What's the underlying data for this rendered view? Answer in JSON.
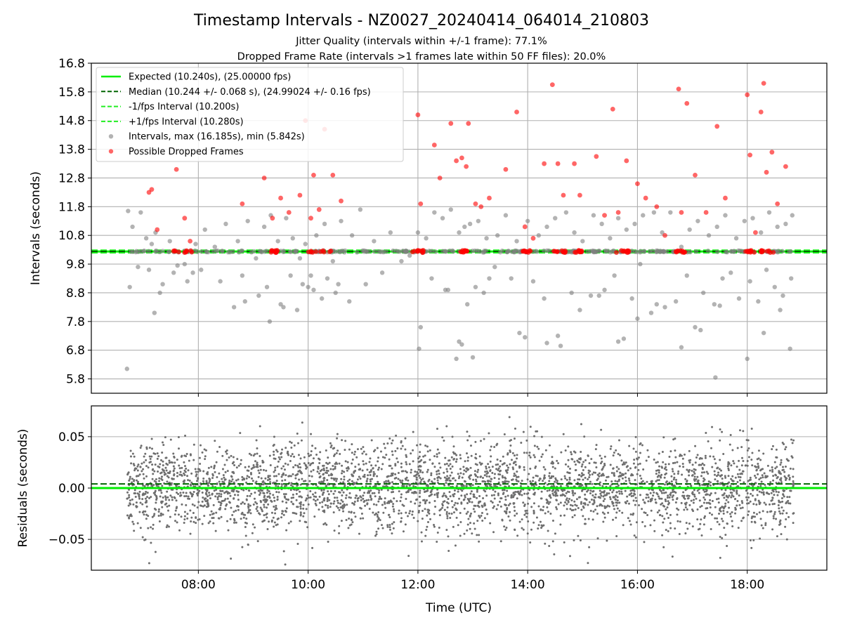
{
  "title": "Timestamp Intervals - NZ0027_20240414_064014_210803",
  "subtitle_lines": [
    "Jitter Quality (intervals within +/-1 frame): 77.1%",
    "Dropped Frame Rate (intervals >1 frames late within 50 FF files): 20.0%"
  ],
  "colors": {
    "expected": "#00ee00",
    "median": "#006400",
    "interval_line": "#22ee22",
    "intervals": "#808080",
    "dropped": "#ff0000",
    "residuals": "#6e6e6e",
    "grid": "#b0b0b0"
  },
  "chart_data": [
    {
      "type": "scatter",
      "ylabel": "Intervals (seconds)",
      "xlim": [
        6.05,
        19.45
      ],
      "ylim": [
        5.3,
        16.8
      ],
      "yticks": [
        5.8,
        6.8,
        7.8,
        8.8,
        9.8,
        10.8,
        11.8,
        12.8,
        13.8,
        14.8,
        15.8,
        16.8
      ],
      "xticks": [
        8,
        10,
        12,
        14,
        16,
        18
      ],
      "grid": true,
      "legend_position": "top-left",
      "legend": [
        "Expected (10.240s), (25.00000 fps)",
        "Median (10.244 +/- 0.068 s), (24.99024 +/- 0.16 fps)",
        "-1/fps Interval (10.200s)",
        "+1/fps Interval (10.280s)",
        "Intervals, max (16.185s), min (5.842s)",
        "Possible Dropped Frames"
      ],
      "lines": {
        "expected": 10.24,
        "median": 10.244,
        "minus_1fps": 10.2,
        "plus_1fps": 10.28
      },
      "series": [
        {
          "name": "Intervals, max (16.185s), min (5.842s)",
          "x": [
            6.72,
            6.8,
            6.95,
            7.05,
            7.15,
            7.22,
            7.35,
            7.48,
            7.62,
            7.8,
            7.95,
            8.12,
            8.3,
            8.5,
            8.72,
            8.9,
            9.05,
            9.2,
            9.32,
            9.45,
            9.6,
            9.72,
            9.85,
            9.95,
            10.05,
            10.15,
            10.3,
            10.45,
            10.6,
            10.8,
            10.95,
            11.2,
            11.5,
            11.85,
            12.0,
            12.15,
            12.3,
            12.45,
            12.6,
            12.75,
            12.85,
            12.95,
            13.1,
            13.25,
            13.45,
            13.6,
            13.8,
            14.0,
            14.2,
            14.35,
            14.5,
            14.7,
            14.85,
            15.0,
            15.2,
            15.35,
            15.5,
            15.65,
            15.8,
            15.95,
            16.1,
            16.3,
            16.45,
            16.6,
            16.8,
            16.95,
            17.1,
            17.3,
            17.45,
            17.6,
            17.8,
            17.95,
            18.1,
            18.25,
            18.4,
            18.55,
            18.7,
            18.82,
            6.75,
            6.9,
            7.1,
            7.3,
            7.55,
            7.75,
            8.05,
            8.4,
            8.65,
            8.85,
            9.1,
            9.25,
            9.5,
            9.68,
            9.9,
            10.1,
            10.35,
            10.5,
            10.75,
            11.05,
            11.35,
            11.7,
            12.05,
            12.25,
            12.5,
            12.7,
            12.8,
            12.9,
            13.05,
            13.2,
            13.4,
            13.7,
            13.85,
            14.1,
            14.3,
            14.55,
            14.8,
            14.95,
            15.15,
            15.4,
            15.58,
            15.75,
            15.9,
            16.05,
            16.25,
            16.5,
            16.7,
            16.9,
            17.05,
            17.2,
            17.4,
            17.55,
            17.7,
            17.85,
            18.05,
            18.2,
            18.35,
            18.5,
            18.65,
            18.8,
            6.7,
            7.2,
            7.9,
            8.8,
            9.3,
            9.55,
            9.8,
            10.0,
            10.25,
            10.55,
            12.02,
            12.55,
            12.75,
            13.0,
            13.3,
            13.95,
            14.35,
            14.6,
            15.3,
            15.65,
            16.0,
            16.35,
            16.8,
            17.15,
            17.42,
            17.5,
            18.0,
            18.3,
            18.6,
            18.78
          ],
          "y": [
            11.65,
            11.1,
            11.6,
            10.7,
            10.5,
            10.9,
            9.1,
            10.6,
            9.75,
            9.2,
            10.5,
            11.0,
            10.4,
            11.2,
            10.6,
            11.3,
            10.0,
            11.1,
            11.5,
            10.6,
            11.4,
            10.7,
            10.0,
            10.5,
            9.4,
            10.8,
            11.2,
            9.9,
            11.3,
            10.8,
            11.7,
            10.6,
            10.9,
            10.1,
            10.9,
            10.7,
            11.6,
            11.4,
            11.7,
            10.9,
            11.1,
            11.2,
            11.3,
            10.7,
            10.8,
            11.5,
            10.6,
            11.3,
            10.8,
            11.1,
            11.4,
            11.6,
            10.9,
            10.6,
            11.5,
            11.2,
            10.7,
            11.4,
            11.0,
            11.2,
            11.5,
            11.6,
            10.9,
            11.6,
            10.4,
            11.0,
            11.3,
            10.8,
            11.1,
            11.5,
            10.7,
            11.3,
            11.4,
            10.9,
            11.6,
            11.1,
            11.2,
            11.5,
            9.0,
            9.7,
            9.6,
            8.8,
            9.5,
            9.8,
            9.6,
            9.2,
            8.3,
            8.5,
            8.7,
            9.0,
            8.4,
            9.4,
            9.1,
            8.9,
            9.3,
            8.8,
            8.5,
            9.1,
            9.5,
            9.9,
            7.6,
            9.3,
            8.9,
            6.5,
            7.0,
            8.4,
            9.0,
            8.8,
            9.7,
            9.3,
            7.4,
            9.2,
            8.6,
            7.3,
            8.8,
            8.2,
            8.7,
            8.9,
            9.4,
            7.2,
            8.6,
            9.8,
            8.1,
            8.3,
            8.5,
            9.4,
            7.6,
            8.8,
            8.4,
            9.3,
            9.5,
            8.6,
            9.2,
            8.5,
            9.6,
            9.0,
            8.7,
            9.3,
            6.15,
            8.1,
            9.5,
            9.4,
            7.8,
            8.3,
            8.2,
            9.0,
            8.6,
            9.1,
            6.85,
            8.9,
            7.1,
            6.55,
            9.3,
            7.25,
            7.05,
            6.95,
            8.7,
            7.1,
            7.9,
            8.4,
            6.9,
            7.5,
            5.85,
            8.35,
            6.5,
            7.4,
            8.2,
            6.85
          ]
        },
        {
          "name": "Possible Dropped Frames",
          "x": [
            7.1,
            7.15,
            7.25,
            7.6,
            7.75,
            7.85,
            8.8,
            9.2,
            9.35,
            9.5,
            9.65,
            9.85,
            9.95,
            10.05,
            10.1,
            10.2,
            10.3,
            10.45,
            10.6,
            12.0,
            12.05,
            12.3,
            12.4,
            12.6,
            12.7,
            12.8,
            12.88,
            12.92,
            13.05,
            13.15,
            13.3,
            13.6,
            13.8,
            13.95,
            14.1,
            14.3,
            14.45,
            14.55,
            14.65,
            14.85,
            14.95,
            15.25,
            15.4,
            15.55,
            15.65,
            15.8,
            16.0,
            16.15,
            16.35,
            16.5,
            16.75,
            16.8,
            16.9,
            17.05,
            17.25,
            17.45,
            17.6,
            18.0,
            18.05,
            18.15,
            18.25,
            18.3,
            18.35,
            18.45,
            18.55,
            18.7
          ],
          "y": [
            12.3,
            12.4,
            11.0,
            13.1,
            11.4,
            10.6,
            11.9,
            12.8,
            11.4,
            12.1,
            11.6,
            12.2,
            14.8,
            11.4,
            12.9,
            11.7,
            14.5,
            12.9,
            12.0,
            15.0,
            11.9,
            13.95,
            12.8,
            14.7,
            13.4,
            13.5,
            13.2,
            14.7,
            11.9,
            11.8,
            12.1,
            13.1,
            15.1,
            11.1,
            10.7,
            13.3,
            16.05,
            13.3,
            12.2,
            13.3,
            12.2,
            13.55,
            11.5,
            15.2,
            11.6,
            13.4,
            12.6,
            12.1,
            11.8,
            10.8,
            15.9,
            11.6,
            15.4,
            12.9,
            11.6,
            14.6,
            12.1,
            15.7,
            13.6,
            10.9,
            15.1,
            16.1,
            13.0,
            13.7,
            11.9,
            13.2
          ]
        }
      ]
    },
    {
      "type": "scatter",
      "ylabel": "Residuals (seconds)",
      "xlabel": "Time (UTC)",
      "xlim": [
        6.05,
        19.45
      ],
      "ylim": [
        -0.08,
        0.08
      ],
      "yticks": [
        -0.05,
        0.0,
        0.05
      ],
      "ytick_labels": [
        "−0.05",
        "0.00",
        "0.05"
      ],
      "xticks": [
        8,
        10,
        12,
        14,
        16,
        18
      ],
      "xtick_labels": [
        "08:00",
        "10:00",
        "12:00",
        "14:00",
        "16:00",
        "18:00"
      ],
      "grid": true,
      "lines": {
        "expected": 0.0,
        "median": 0.004
      },
      "series": [
        {
          "name": "Residuals",
          "x_range": [
            6.7,
            18.85
          ],
          "count": 3600,
          "distribution": "normal",
          "mean": 0.0,
          "std": 0.022,
          "clip": [
            -0.078,
            0.072
          ]
        }
      ]
    }
  ]
}
